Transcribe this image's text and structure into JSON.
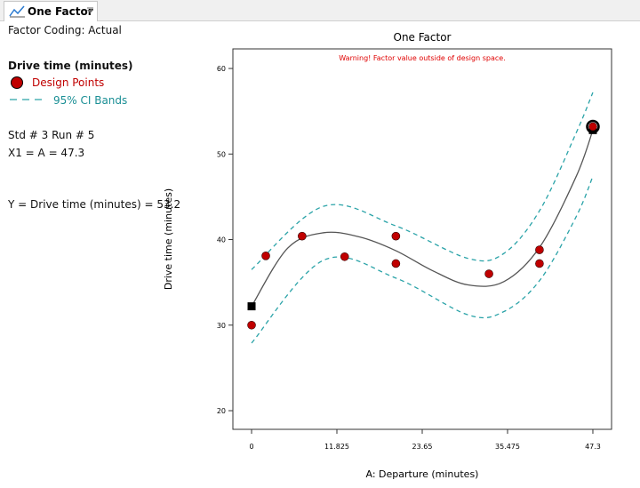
{
  "tab": {
    "title": "One Factor"
  },
  "side_panel": {
    "coding": "Factor Coding: Actual",
    "std_run": "Std # 3 Run # 5",
    "x_readout": "X1 = A = 47.3",
    "y_readout": "Y = Drive time (minutes) = 53.2"
  },
  "chart_data": {
    "type": "scatter",
    "title": "One Factor",
    "warning": "Warning! Factor value outside of design space.",
    "x_label": "A: Departure (minutes)",
    "y_label": "Drive time (minutes)",
    "xlim": [
      -2.59,
      49.89
    ],
    "ylim": [
      17.82,
      62.29
    ],
    "xticks": [
      0,
      11.825,
      23.65,
      35.475,
      47.3
    ],
    "yticks": [
      20,
      30,
      40,
      50,
      60
    ],
    "points": {
      "name": "Design Points",
      "color": "#c00000",
      "x": [
        0,
        1.97,
        7.0,
        12.9,
        20.0,
        20.0,
        32.9,
        39.9,
        39.9,
        47.3
      ],
      "y": [
        30.0,
        38.1,
        40.4,
        38.0,
        40.4,
        37.2,
        36.0,
        38.8,
        37.2,
        53.2
      ]
    },
    "fit": {
      "color": "#555555",
      "x": [
        0,
        5,
        10,
        15,
        20,
        25,
        30,
        35,
        40,
        45,
        47.3
      ],
      "values": [
        32.2,
        39.0,
        40.8,
        40.3,
        38.7,
        36.4,
        34.7,
        35.1,
        39.2,
        47.4,
        52.8
      ]
    },
    "ci_bands": {
      "name": "95% CI Bands",
      "color": "#2aa3a8",
      "x": [
        0,
        10,
        20,
        30,
        35,
        40,
        45,
        47.3
      ],
      "upper": [
        36.5,
        43.9,
        41.6,
        37.8,
        38.4,
        43.5,
        52.5,
        57.2
      ],
      "lower": [
        27.9,
        37.6,
        35.5,
        31.2,
        31.6,
        35.3,
        42.7,
        47.4
      ]
    }
  }
}
